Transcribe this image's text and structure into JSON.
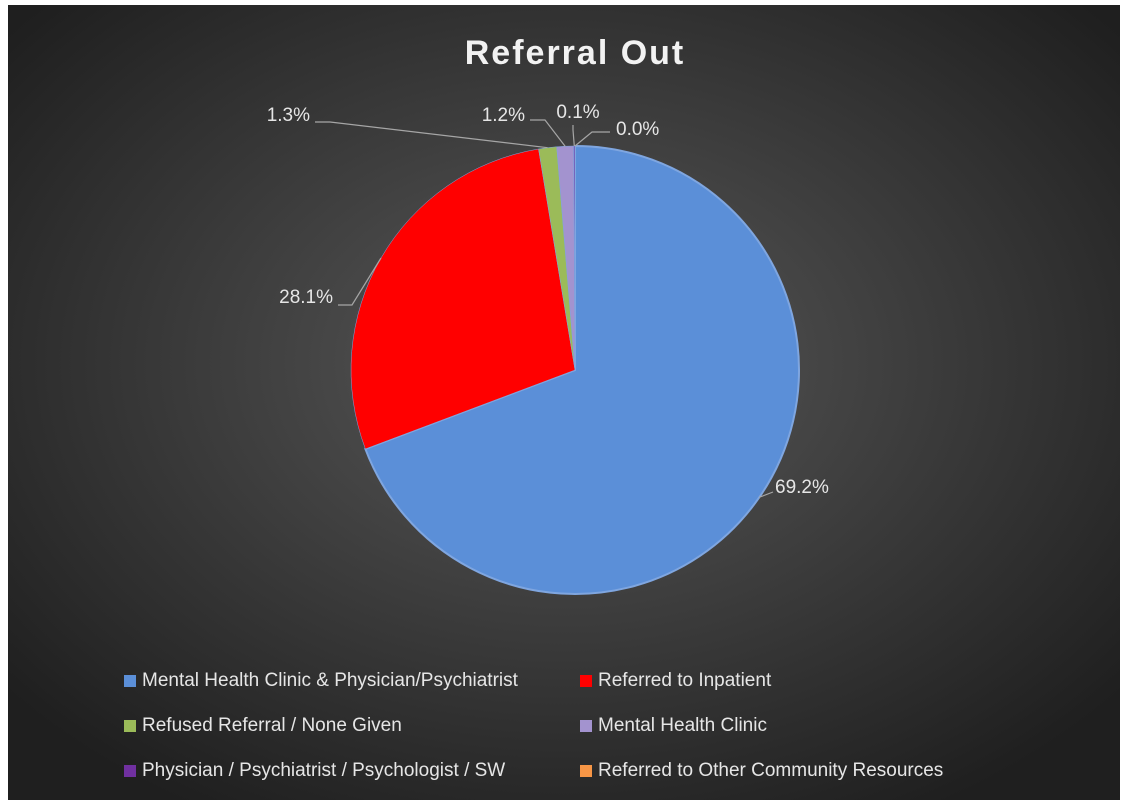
{
  "chart_data": {
    "type": "pie",
    "title": "Referral Out",
    "categories": [
      "Mental Health Clinic & Physician/Psychiatrist",
      "Referred to Inpatient",
      "Refused Referral / None Given",
      "Mental Health Clinic",
      "Physician / Psychiatrist / Psychologist / SW",
      "Referred to Other Community Resources"
    ],
    "values": [
      69.2,
      28.1,
      1.3,
      1.2,
      0.1,
      0.0
    ],
    "value_labels": [
      "69.2%",
      "28.1%",
      "1.3%",
      "1.2%",
      "0.1%",
      "0.0%"
    ],
    "colors": [
      "#5b8fd8",
      "#ff0000",
      "#9bbb59",
      "#a393cf",
      "#7030a0",
      "#f79646"
    ],
    "legend": "bottom"
  }
}
